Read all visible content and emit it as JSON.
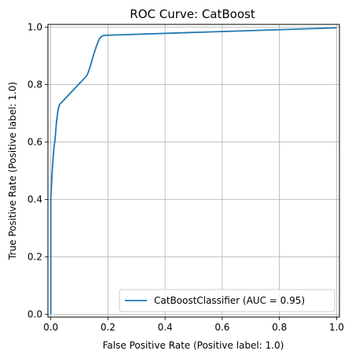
{
  "chart_data": {
    "type": "line",
    "title": "ROC Curve: CatBoost",
    "xlabel": "False Positive Rate (Positive label: 1.0)",
    "ylabel": "True Positive Rate (Positive label: 1.0)",
    "xlim": [
      -0.01,
      1.01
    ],
    "ylim": [
      -0.01,
      1.01
    ],
    "xticks": [
      0.0,
      0.2,
      0.4,
      0.6,
      0.8,
      1.0
    ],
    "yticks": [
      0.0,
      0.2,
      0.4,
      0.6,
      0.8,
      1.0
    ],
    "xtick_labels": [
      "0.0",
      "0.2",
      "0.4",
      "0.6",
      "0.8",
      "1.0"
    ],
    "ytick_labels": [
      "0.0",
      "0.2",
      "0.4",
      "0.6",
      "0.8",
      "1.0"
    ],
    "grid": true,
    "legend_position": "lower-right",
    "series": [
      {
        "name": "CatBoostClassifier (AUC = 0.95)",
        "color": "#1f77b4",
        "x": [
          0.0,
          0.0,
          0.005,
          0.01,
          0.015,
          0.02,
          0.025,
          0.03,
          0.125,
          0.13,
          0.14,
          0.15,
          0.16,
          0.17,
          0.18,
          0.19,
          1.0
        ],
        "y": [
          0.0,
          0.4,
          0.5,
          0.57,
          0.61,
          0.67,
          0.71,
          0.73,
          0.83,
          0.84,
          0.87,
          0.905,
          0.935,
          0.96,
          0.97,
          0.972,
          0.998
        ]
      }
    ]
  }
}
